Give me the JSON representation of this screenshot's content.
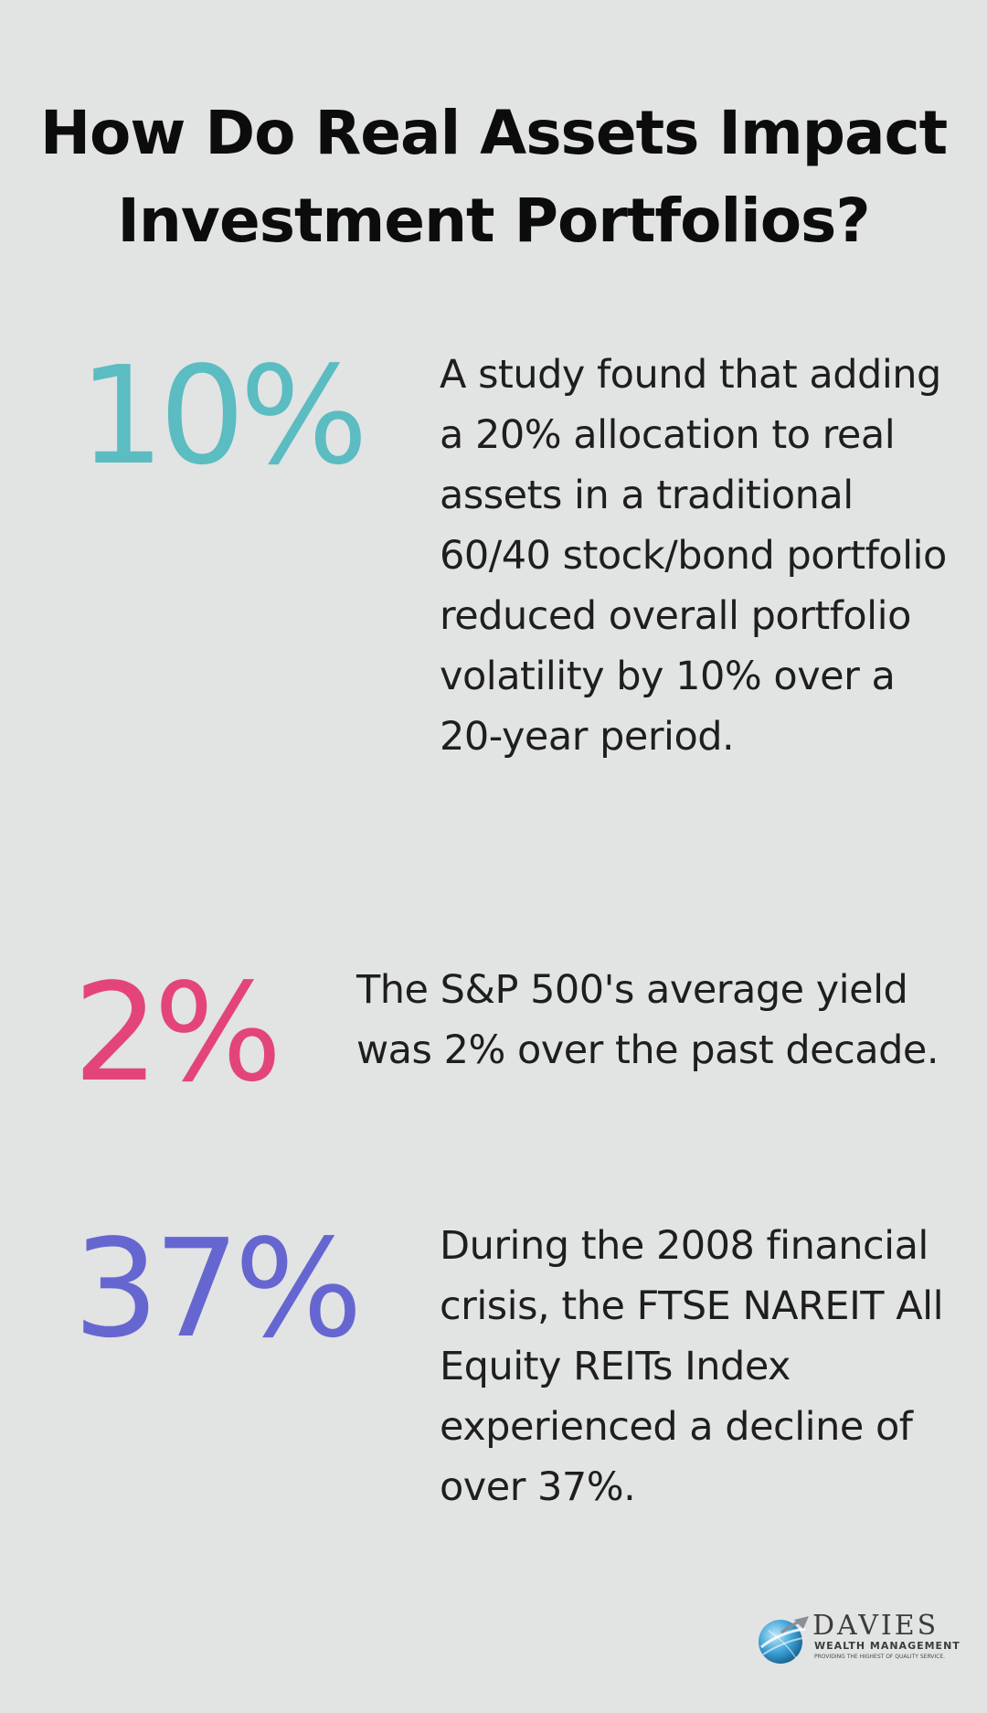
{
  "title": "How Do Real Assets Impact Investment Portfolios?",
  "stats": [
    {
      "value": "10%",
      "text": "A study found that adding a 20% allocation to real assets in a traditional 60/40 stock/bond portfolio reduced overall portfolio volatility by 10% over a 20-year period.",
      "color": "#5bbcc1"
    },
    {
      "value": "2%",
      "text": "The S&P 500's average yield was 2% over the past decade.",
      "color": "#e3457a"
    },
    {
      "value": "37%",
      "text": "During the 2008 financial crisis, the FTSE NAREIT All Equity REITs Index experienced a decline of over 37%.",
      "color": "#6666d1"
    }
  ],
  "logo": {
    "name": "DAVIES",
    "subtitle": "WEALTH MANAGEMENT",
    "tagline": "PROVIDING THE HIGHEST OF QUALITY SERVICE.",
    "icon": "globe-icon"
  },
  "colors": {
    "background": "#e2e3e3",
    "title": "#0c0c0c",
    "body_text": "#1e1e1e"
  }
}
